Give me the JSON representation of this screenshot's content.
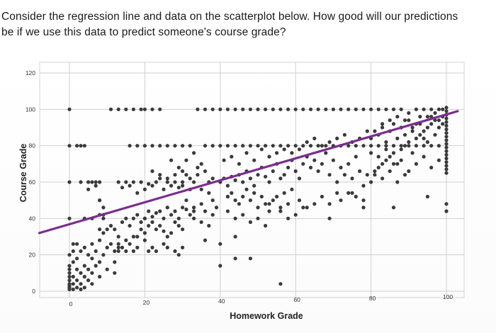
{
  "question": {
    "line1": "Consider the regression line and data on the scatterplot below. How good will our predictions",
    "line2": "be if we use this data to predict someone's course grade?"
  },
  "chart_data": {
    "type": "scatter",
    "title": "",
    "xlabel": "Homework Grade",
    "ylabel": "Course Grade",
    "xlim": [
      0,
      100
    ],
    "ylim": [
      0,
      120
    ],
    "xticks": [
      0,
      20,
      40,
      60,
      80,
      100
    ],
    "yticks": [
      0,
      20,
      40,
      60,
      80,
      100,
      120
    ],
    "grid": true,
    "legend": "none",
    "point_color": "#3a3a3a",
    "line_color": "#7b2d8e",
    "regression_line": {
      "x": [
        -8,
        103
      ],
      "y": [
        32,
        99
      ]
    },
    "points": [
      [
        0,
        100
      ],
      [
        0,
        80
      ],
      [
        0,
        60
      ],
      [
        0,
        40
      ],
      [
        0,
        20
      ],
      [
        0,
        14
      ],
      [
        0,
        12
      ],
      [
        0,
        10
      ],
      [
        0,
        8
      ],
      [
        0,
        6
      ],
      [
        0,
        4
      ],
      [
        0,
        3
      ],
      [
        0,
        2
      ],
      [
        0,
        1
      ],
      [
        1,
        26
      ],
      [
        1,
        22
      ],
      [
        1,
        16
      ],
      [
        1,
        8
      ],
      [
        1,
        4
      ],
      [
        1,
        1
      ],
      [
        2,
        26
      ],
      [
        2,
        18
      ],
      [
        2,
        12
      ],
      [
        2,
        6
      ],
      [
        2,
        2
      ],
      [
        3,
        22
      ],
      [
        3,
        10
      ],
      [
        3,
        4
      ],
      [
        3,
        1
      ],
      [
        4,
        24
      ],
      [
        4,
        14
      ],
      [
        4,
        8
      ],
      [
        4,
        2
      ],
      [
        5,
        20
      ],
      [
        5,
        12
      ],
      [
        5,
        6
      ],
      [
        6,
        26
      ],
      [
        6,
        18
      ],
      [
        6,
        10
      ],
      [
        6,
        4
      ],
      [
        7,
        22
      ],
      [
        7,
        14
      ],
      [
        8,
        16
      ],
      [
        8,
        8
      ],
      [
        9,
        20
      ],
      [
        10,
        12
      ],
      [
        3,
        60
      ],
      [
        4,
        40
      ],
      [
        6,
        40
      ],
      [
        2,
        80
      ],
      [
        3,
        80
      ],
      [
        4,
        80
      ],
      [
        5,
        60
      ],
      [
        6,
        60
      ],
      [
        7,
        60
      ],
      [
        8,
        60
      ],
      [
        5,
        56
      ],
      [
        7,
        58
      ],
      [
        8,
        50
      ],
      [
        9,
        46
      ],
      [
        8,
        42
      ],
      [
        9,
        42
      ],
      [
        8,
        34
      ],
      [
        9,
        32
      ],
      [
        10,
        34
      ],
      [
        8,
        28
      ],
      [
        11,
        36
      ],
      [
        10,
        24
      ],
      [
        11,
        26
      ],
      [
        12,
        22
      ],
      [
        12,
        16
      ],
      [
        13,
        24
      ],
      [
        12,
        10
      ],
      [
        8,
        50
      ],
      [
        9,
        40
      ],
      [
        11,
        100
      ],
      [
        13,
        100
      ],
      [
        15,
        100
      ],
      [
        17,
        100
      ],
      [
        19,
        100
      ],
      [
        20,
        100
      ],
      [
        22,
        100
      ],
      [
        24,
        100
      ],
      [
        16,
        80
      ],
      [
        18,
        80
      ],
      [
        20,
        80
      ],
      [
        22,
        80
      ],
      [
        24,
        80
      ],
      [
        26,
        80
      ],
      [
        28,
        80
      ],
      [
        30,
        80
      ],
      [
        32,
        80
      ],
      [
        13,
        60
      ],
      [
        14,
        57
      ],
      [
        15,
        60
      ],
      [
        16,
        58
      ],
      [
        17,
        60
      ],
      [
        18,
        54
      ],
      [
        19,
        60
      ],
      [
        20,
        56
      ],
      [
        21,
        59
      ],
      [
        22,
        58
      ],
      [
        23,
        60
      ],
      [
        24,
        62
      ],
      [
        25,
        56
      ],
      [
        26,
        60
      ],
      [
        27,
        58
      ],
      [
        28,
        60
      ],
      [
        29,
        57
      ],
      [
        30,
        60
      ],
      [
        14,
        38
      ],
      [
        15,
        40
      ],
      [
        16,
        36
      ],
      [
        17,
        40
      ],
      [
        18,
        42
      ],
      [
        19,
        38
      ],
      [
        20,
        40
      ],
      [
        21,
        44
      ],
      [
        22,
        41
      ],
      [
        23,
        43
      ],
      [
        24,
        44
      ],
      [
        25,
        40
      ],
      [
        26,
        46
      ],
      [
        27,
        42
      ],
      [
        28,
        44
      ],
      [
        29,
        40
      ],
      [
        30,
        46
      ],
      [
        31,
        45
      ],
      [
        32,
        42
      ],
      [
        33,
        44
      ],
      [
        12,
        34
      ],
      [
        13,
        30
      ],
      [
        13,
        26
      ],
      [
        13,
        22
      ],
      [
        14,
        24
      ],
      [
        15,
        28
      ],
      [
        15,
        22
      ],
      [
        16,
        26
      ],
      [
        17,
        22
      ],
      [
        18,
        24
      ],
      [
        18,
        30
      ],
      [
        19,
        34
      ],
      [
        20,
        32
      ],
      [
        21,
        22
      ],
      [
        22,
        24
      ],
      [
        23,
        22
      ],
      [
        20,
        28
      ],
      [
        17,
        30
      ],
      [
        20,
        40
      ],
      [
        21,
        36
      ],
      [
        22,
        38
      ],
      [
        23,
        34
      ],
      [
        24,
        36
      ],
      [
        25,
        33
      ],
      [
        26,
        30
      ],
      [
        27,
        32
      ],
      [
        28,
        38
      ],
      [
        29,
        36
      ],
      [
        30,
        34
      ],
      [
        25,
        26
      ],
      [
        26,
        24
      ],
      [
        28,
        22
      ],
      [
        29,
        20
      ],
      [
        30,
        24
      ],
      [
        22,
        66
      ],
      [
        24,
        64
      ],
      [
        26,
        62
      ],
      [
        28,
        64
      ],
      [
        30,
        66
      ],
      [
        32,
        62
      ],
      [
        34,
        68
      ],
      [
        35,
        70
      ],
      [
        34,
        64
      ],
      [
        36,
        66
      ],
      [
        37,
        60
      ],
      [
        38,
        62
      ],
      [
        31,
        72
      ],
      [
        33,
        76
      ],
      [
        30,
        58
      ],
      [
        32,
        56
      ],
      [
        27,
        72
      ],
      [
        29,
        68
      ],
      [
        31,
        64
      ],
      [
        33,
        60
      ],
      [
        35,
        56
      ],
      [
        37,
        54
      ],
      [
        31,
        50
      ],
      [
        33,
        46
      ],
      [
        35,
        48
      ],
      [
        36,
        44
      ],
      [
        38,
        50
      ],
      [
        33,
        40
      ],
      [
        35,
        38
      ],
      [
        37,
        36
      ],
      [
        38,
        42
      ],
      [
        39,
        46
      ],
      [
        36,
        28
      ],
      [
        40,
        26
      ],
      [
        34,
        100
      ],
      [
        36,
        100
      ],
      [
        38,
        100
      ],
      [
        40,
        100
      ],
      [
        42,
        100
      ],
      [
        44,
        100
      ],
      [
        46,
        100
      ],
      [
        48,
        100
      ],
      [
        50,
        100
      ],
      [
        52,
        100
      ],
      [
        54,
        100
      ],
      [
        56,
        100
      ],
      [
        58,
        100
      ],
      [
        60,
        100
      ],
      [
        62,
        100
      ],
      [
        64,
        100
      ],
      [
        66,
        100
      ],
      [
        68,
        100
      ],
      [
        70,
        100
      ],
      [
        72,
        100
      ],
      [
        74,
        100
      ],
      [
        76,
        100
      ],
      [
        78,
        100
      ],
      [
        80,
        100
      ],
      [
        82,
        100
      ],
      [
        84,
        100
      ],
      [
        86,
        100
      ],
      [
        88,
        100
      ],
      [
        36,
        80
      ],
      [
        38,
        80
      ],
      [
        40,
        80
      ],
      [
        42,
        80
      ],
      [
        44,
        80
      ],
      [
        46,
        80
      ],
      [
        48,
        80
      ],
      [
        50,
        80
      ],
      [
        52,
        80
      ],
      [
        54,
        80
      ],
      [
        56,
        80
      ],
      [
        58,
        80
      ],
      [
        60,
        80
      ],
      [
        62,
        80
      ],
      [
        64,
        80
      ],
      [
        66,
        80
      ],
      [
        68,
        80
      ],
      [
        70,
        80
      ],
      [
        72,
        80
      ],
      [
        74,
        80
      ],
      [
        76,
        80
      ],
      [
        78,
        80
      ],
      [
        80,
        80
      ],
      [
        82,
        80
      ],
      [
        84,
        80
      ],
      [
        86,
        80
      ],
      [
        88,
        80
      ],
      [
        90,
        80
      ],
      [
        92,
        80
      ],
      [
        94,
        80
      ],
      [
        96,
        80
      ],
      [
        98,
        80
      ],
      [
        40,
        60
      ],
      [
        41,
        62
      ],
      [
        42,
        58
      ],
      [
        43,
        63
      ],
      [
        44,
        61
      ],
      [
        45,
        64
      ],
      [
        46,
        60
      ],
      [
        47,
        66
      ],
      [
        48,
        62
      ],
      [
        49,
        58
      ],
      [
        50,
        64
      ],
      [
        51,
        68
      ],
      [
        52,
        63
      ],
      [
        53,
        60
      ],
      [
        54,
        66
      ],
      [
        55,
        70
      ],
      [
        56,
        62
      ],
      [
        57,
        64
      ],
      [
        58,
        68
      ],
      [
        59,
        72
      ],
      [
        60,
        66
      ],
      [
        61,
        62
      ],
      [
        62,
        70
      ],
      [
        63,
        74
      ],
      [
        64,
        68
      ],
      [
        65,
        72
      ],
      [
        66,
        66
      ],
      [
        67,
        70
      ],
      [
        68,
        76
      ],
      [
        69,
        64
      ],
      [
        70,
        72
      ],
      [
        71,
        60
      ],
      [
        72,
        68
      ],
      [
        73,
        64
      ],
      [
        74,
        70
      ],
      [
        75,
        62
      ],
      [
        76,
        74
      ],
      [
        77,
        66
      ],
      [
        78,
        58
      ],
      [
        79,
        64
      ],
      [
        41,
        72
      ],
      [
        43,
        74
      ],
      [
        45,
        70
      ],
      [
        47,
        76
      ],
      [
        49,
        72
      ],
      [
        51,
        78
      ],
      [
        53,
        74
      ],
      [
        55,
        76
      ],
      [
        57,
        78
      ],
      [
        59,
        76
      ],
      [
        61,
        78
      ],
      [
        63,
        82
      ],
      [
        65,
        84
      ],
      [
        67,
        80
      ],
      [
        69,
        82
      ],
      [
        71,
        84
      ],
      [
        73,
        86
      ],
      [
        75,
        82
      ],
      [
        77,
        84
      ],
      [
        79,
        88
      ],
      [
        42,
        52
      ],
      [
        43,
        54
      ],
      [
        44,
        50
      ],
      [
        45,
        48
      ],
      [
        46,
        52
      ],
      [
        47,
        56
      ],
      [
        48,
        50
      ],
      [
        49,
        54
      ],
      [
        50,
        46
      ],
      [
        51,
        52
      ],
      [
        52,
        48
      ],
      [
        53,
        44
      ],
      [
        54,
        50
      ],
      [
        55,
        52
      ],
      [
        56,
        46
      ],
      [
        57,
        54
      ],
      [
        58,
        48
      ],
      [
        59,
        56
      ],
      [
        60,
        42
      ],
      [
        61,
        50
      ],
      [
        62,
        46
      ],
      [
        42,
        44
      ],
      [
        44,
        40
      ],
      [
        46,
        42
      ],
      [
        48,
        38
      ],
      [
        50,
        40
      ],
      [
        52,
        36
      ],
      [
        44,
        30
      ],
      [
        53,
        48
      ],
      [
        56,
        44
      ],
      [
        58,
        40
      ],
      [
        63,
        46
      ],
      [
        65,
        48
      ],
      [
        67,
        52
      ],
      [
        69,
        48
      ],
      [
        72,
        50
      ],
      [
        74,
        54
      ],
      [
        76,
        52
      ],
      [
        78,
        46
      ],
      [
        80,
        60
      ],
      [
        81,
        66
      ],
      [
        82,
        68
      ],
      [
        83,
        70
      ],
      [
        84,
        72
      ],
      [
        85,
        74
      ],
      [
        86,
        76
      ],
      [
        87,
        70
      ],
      [
        88,
        78
      ],
      [
        89,
        80
      ],
      [
        90,
        82
      ],
      [
        91,
        76
      ],
      [
        92,
        84
      ],
      [
        93,
        86
      ],
      [
        94,
        88
      ],
      [
        95,
        90
      ],
      [
        96,
        92
      ],
      [
        97,
        86
      ],
      [
        98,
        94
      ],
      [
        99,
        96
      ],
      [
        80,
        84
      ],
      [
        81,
        88
      ],
      [
        82,
        86
      ],
      [
        83,
        90
      ],
      [
        84,
        82
      ],
      [
        85,
        88
      ],
      [
        86,
        92
      ],
      [
        87,
        84
      ],
      [
        88,
        90
      ],
      [
        89,
        86
      ],
      [
        90,
        94
      ],
      [
        91,
        88
      ],
      [
        92,
        92
      ],
      [
        93,
        96
      ],
      [
        94,
        84
      ],
      [
        95,
        82
      ],
      [
        96,
        96
      ],
      [
        97,
        98
      ],
      [
        98,
        90
      ],
      [
        99,
        92
      ],
      [
        80,
        76
      ],
      [
        82,
        74
      ],
      [
        84,
        78
      ],
      [
        86,
        70
      ],
      [
        88,
        72
      ],
      [
        90,
        66
      ],
      [
        92,
        70
      ],
      [
        94,
        74
      ],
      [
        96,
        68
      ],
      [
        98,
        72
      ],
      [
        81,
        64
      ],
      [
        83,
        62
      ],
      [
        85,
        66
      ],
      [
        87,
        60
      ],
      [
        89,
        64
      ],
      [
        90,
        98
      ],
      [
        92,
        100
      ],
      [
        94,
        100
      ],
      [
        96,
        100
      ],
      [
        98,
        100
      ],
      [
        99,
        100
      ],
      [
        95,
        96
      ],
      [
        97,
        94
      ],
      [
        93,
        92
      ],
      [
        91,
        90
      ],
      [
        89,
        94
      ],
      [
        87,
        96
      ],
      [
        85,
        94
      ],
      [
        83,
        92
      ],
      [
        100,
        101
      ],
      [
        100,
        99
      ],
      [
        100,
        97
      ],
      [
        100,
        95
      ],
      [
        100,
        93
      ],
      [
        100,
        91
      ],
      [
        100,
        89
      ],
      [
        100,
        87
      ],
      [
        100,
        85
      ],
      [
        100,
        83
      ],
      [
        100,
        81
      ],
      [
        100,
        79
      ],
      [
        100,
        77
      ],
      [
        100,
        75
      ],
      [
        100,
        73
      ],
      [
        100,
        71
      ],
      [
        100,
        69
      ],
      [
        100,
        67
      ],
      [
        100,
        65
      ],
      [
        100,
        48
      ],
      [
        100,
        44
      ],
      [
        86,
        46
      ],
      [
        78,
        50
      ],
      [
        75,
        54
      ],
      [
        71,
        54
      ],
      [
        69,
        40
      ],
      [
        56,
        4
      ],
      [
        48,
        18
      ],
      [
        40,
        14
      ],
      [
        44,
        18
      ],
      [
        95,
        52
      ]
    ]
  }
}
